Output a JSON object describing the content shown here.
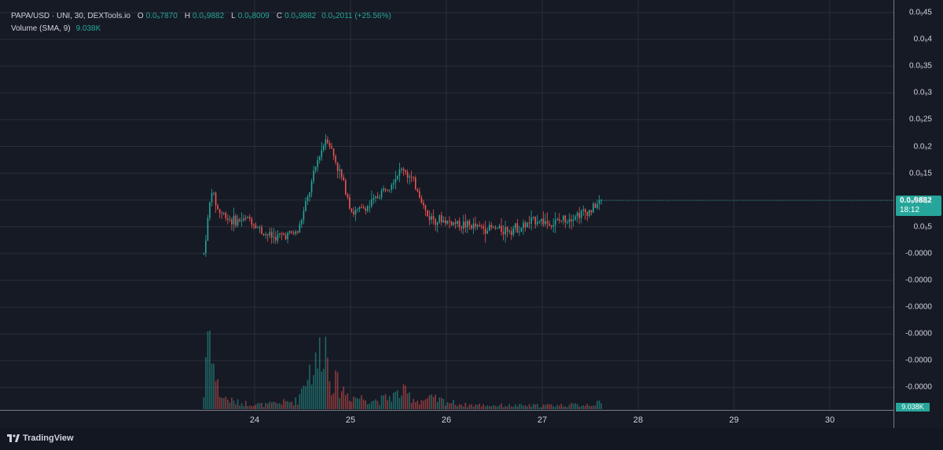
{
  "legend": {
    "symbol": "PAPA/USD · UNI, 30, DEXTools.io",
    "open_label": "O",
    "open_value": "0.0₉7870",
    "high_label": "H",
    "high_value": "0.0₉9882",
    "low_label": "L",
    "low_value": "0.0₉8009",
    "close_label": "C",
    "close_value": "0.0₉9882",
    "change": "0.0₉2011 (+25.56%)",
    "volume_label": "Volume (SMA, 9)",
    "volume_value": "9.038K"
  },
  "price_axis": {
    "labels": [
      "0.0₉45",
      "0.0₉4",
      "0.0₉35",
      "0.0₉3",
      "0.0₉25",
      "0.0₉2",
      "0.0₉15",
      "0.0₉1",
      "0.0₉5",
      "-0.0000",
      "-0.0000",
      "-0.0000",
      "-0.0000",
      "-0.0000",
      "-0.0000"
    ],
    "current_price": "0.0₉9882",
    "countdown": "18:12",
    "volume_tag": "9.038K"
  },
  "time_axis": {
    "labels": [
      "24",
      "25",
      "26",
      "27",
      "28",
      "29",
      "30"
    ]
  },
  "footer": {
    "brand": "TradingView"
  },
  "colors": {
    "up": "#26a69a",
    "down": "#ef5350",
    "grid": "#2a2e39",
    "background": "#161a25"
  },
  "chart_data": {
    "type": "candlestick",
    "title": "PAPA/USD · UNI, 30, DEXTools.io",
    "x_unit": "day of month (30-minute candles)",
    "x_range": [
      23.0,
      31.0
    ],
    "y_range_price_e9": [
      -0.1,
      0.47
    ],
    "price_anchor_e9": [
      [
        23.47,
        0.0
      ],
      [
        23.55,
        0.12
      ],
      [
        23.62,
        0.08
      ],
      [
        23.78,
        0.06
      ],
      [
        23.95,
        0.065
      ],
      [
        24.08,
        0.04
      ],
      [
        24.2,
        0.03
      ],
      [
        24.45,
        0.04
      ],
      [
        24.58,
        0.12
      ],
      [
        24.65,
        0.17
      ],
      [
        24.75,
        0.22
      ],
      [
        24.85,
        0.17
      ],
      [
        24.95,
        0.12
      ],
      [
        25.02,
        0.075
      ],
      [
        25.2,
        0.09
      ],
      [
        25.4,
        0.13
      ],
      [
        25.55,
        0.16
      ],
      [
        25.7,
        0.12
      ],
      [
        25.8,
        0.07
      ],
      [
        26.0,
        0.06
      ],
      [
        26.3,
        0.05
      ],
      [
        26.6,
        0.045
      ],
      [
        26.8,
        0.05
      ],
      [
        26.95,
        0.065
      ],
      [
        27.1,
        0.055
      ],
      [
        27.3,
        0.07
      ],
      [
        27.5,
        0.08
      ],
      [
        27.62,
        0.099
      ]
    ],
    "volume_anchor_rel": [
      [
        23.47,
        0.15
      ],
      [
        23.5,
        0.9
      ],
      [
        23.55,
        0.95
      ],
      [
        23.58,
        0.4
      ],
      [
        23.65,
        0.15
      ],
      [
        23.8,
        0.08
      ],
      [
        24.1,
        0.05
      ],
      [
        24.45,
        0.1
      ],
      [
        24.55,
        0.45
      ],
      [
        24.65,
        0.5
      ],
      [
        24.72,
        0.9
      ],
      [
        24.8,
        0.35
      ],
      [
        25.0,
        0.15
      ],
      [
        25.3,
        0.1
      ],
      [
        25.55,
        0.2
      ],
      [
        25.7,
        0.1
      ],
      [
        25.85,
        0.12
      ],
      [
        26.2,
        0.05
      ],
      [
        26.8,
        0.04
      ],
      [
        27.4,
        0.05
      ],
      [
        27.62,
        0.07
      ]
    ]
  }
}
